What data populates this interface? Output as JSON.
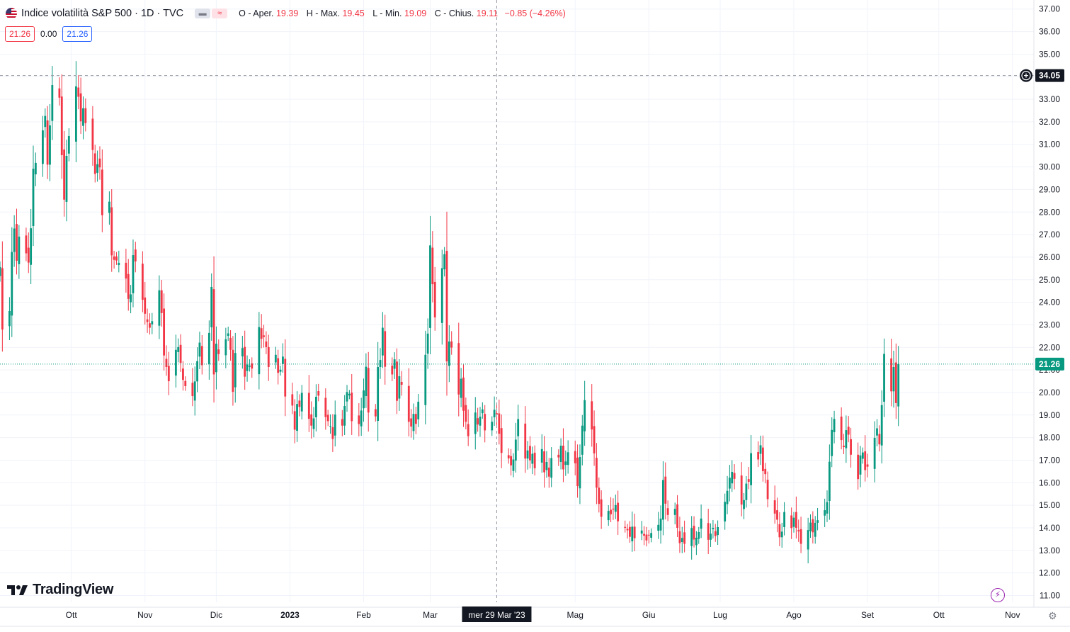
{
  "header": {
    "title": "Indice volatilità S&P 500 · 1D · TVC",
    "ohlc": [
      {
        "label": "O - Aper.",
        "value": "19.39"
      },
      {
        "label": "H - Max.",
        "value": "19.45"
      },
      {
        "label": "L - Min.",
        "value": "19.09"
      },
      {
        "label": "C - Chius.",
        "value": "19.11"
      }
    ],
    "change": "−0.85 (−4.26%)",
    "last_box": "21.26",
    "zero": "0.00",
    "last_box_2": "21.26",
    "pill_1": "▬",
    "pill_2": "≈"
  },
  "logo_text": "TradingView",
  "colors": {
    "up": "#089981",
    "down": "#f23645",
    "grid": "#f0f3fa",
    "axis_text": "#131722",
    "last_price": "#089981"
  },
  "icons": {
    "flag": "us-flag-icon",
    "logo": "tradingview-logo-icon",
    "bolt": "lightning-icon",
    "gear": "settings-gear-icon",
    "plus": "plus-circle-icon"
  },
  "chart_data": {
    "type": "candlestick",
    "symbol": "Indice volatilità S&P 500",
    "interval": "1D",
    "ylim": [
      10.7,
      37.4
    ],
    "yticks": [
      11,
      12,
      13,
      14,
      15,
      16,
      17,
      18,
      19,
      20,
      21,
      22,
      23,
      24,
      25,
      26,
      27,
      28,
      29,
      30,
      31,
      32,
      33,
      34,
      35,
      36,
      37
    ],
    "x_start": "2022-09-01",
    "x_end": "2023-11-10",
    "month_labels": [
      {
        "label": "Ott",
        "date": "2022-10-01"
      },
      {
        "label": "Nov",
        "date": "2022-11-01"
      },
      {
        "label": "Dic",
        "date": "2022-12-01"
      },
      {
        "label": "2023",
        "date": "2023-01-01",
        "bold": true
      },
      {
        "label": "Feb",
        "date": "2023-02-01"
      },
      {
        "label": "Mar",
        "date": "2023-03-01"
      },
      {
        "label": "Mag",
        "date": "2023-05-01"
      },
      {
        "label": "Giu",
        "date": "2023-06-01"
      },
      {
        "label": "Lug",
        "date": "2023-07-01"
      },
      {
        "label": "Ago",
        "date": "2023-08-01"
      },
      {
        "label": "Set",
        "date": "2023-09-01"
      },
      {
        "label": "Ott",
        "date": "2023-10-01"
      },
      {
        "label": "Nov",
        "date": "2023-11-01"
      }
    ],
    "crosshair": {
      "date_label": "mer 29 Mar '23",
      "date": "2023-03-29",
      "price": 34.05,
      "price_label": "34.05"
    },
    "last_price": {
      "value": 21.26,
      "label": "21.26"
    },
    "closes": [
      25.56,
      22.79,
      23.61,
      26.23,
      27.27,
      25.84,
      26.91,
      26.17,
      25.76,
      27.28,
      29.92,
      30.18,
      31.62,
      32.26,
      30.1,
      31.84,
      33.63,
      33.07,
      30.52,
      28.55,
      30.49,
      31.37,
      33.57,
      33.11,
      32.02,
      32.6,
      31.94,
      30.75,
      29.69,
      30.12,
      29.98,
      27.86,
      28.46,
      26.08,
      25.88,
      25.85,
      25.75,
      25.05,
      24.15,
      24.35,
      26.09,
      25.81,
      24.11,
      23.49,
      23.12,
      22.87,
      23.16,
      24.53,
      23.52,
      21.64,
      21.13,
      20.5,
      21.89,
      22.01,
      21.31,
      20.56,
      20.28,
      19.84,
      20.49,
      21.39,
      22.21,
      21.21,
      22.64,
      24.68,
      20.8,
      22.16,
      21.7,
      22.36,
      22.62,
      21.89,
      20.03,
      21.75,
      21.97,
      20.7,
      21.24,
      21.19,
      21.06,
      22.9,
      22.38,
      22.46,
      22.01,
      21.13,
      21.67,
      20.87,
      21.01,
      21.59,
      19.82,
      19.42,
      18.35,
      19.49,
      19.36,
      19.98,
      18.83,
      18.53,
      18.85,
      19.81,
      19.86,
      18.91,
      18.73,
      18.51,
      17.94,
      19.02,
      18.53,
      19.4,
      20.02,
      19.94,
      18.73,
      18.6,
      19.2,
      20.09,
      21.14,
      19.11,
      18.94,
      21.13,
      21.44,
      22.87,
      21.14,
      20.8,
      21.47,
      19.63,
      20.72,
      20.34,
      18.7,
      18.49,
      19.05,
      18.61,
      19.59,
      21.67,
      22.61,
      26.52,
      24.8,
      23.33,
      25.51,
      26.13,
      21.38,
      22.26,
      21.99,
      19.91,
      20.61,
      19.19,
      18.7,
      18.06,
      19.11,
      18.58,
      18.93,
      19.25,
      18.32,
      18.7,
      19.23,
      19.02,
      18.17,
      17.32,
      17.08,
      16.77,
      17.03,
      17.91,
      18.82,
      17.07,
      17.43,
      16.99,
      17.28,
      16.64,
      17.49,
      16.46,
      16.92,
      16.27,
      17.09,
      17.12,
      17.64,
      16.59,
      16.94,
      17.35,
      16.86,
      15.85,
      17.14,
      18.53,
      19.66,
      18.36,
      17.3,
      15.78,
      15.06,
      14.49,
      14.75,
      14.6,
      14.81,
      15.01,
      14.29,
      14.0,
      13.89,
      13.6,
      14.05,
      13.54,
      13.88,
      13.65,
      13.44,
      13.66,
      13.77,
      14.13,
      14.41,
      16.12,
      15.07,
      14.57,
      14.84,
      14.0,
      13.32,
      13.55,
      13.29,
      13.99,
      13.48,
      13.56,
      13.81,
      14.41,
      13.47,
      13.74,
      14.0,
      13.63,
      14.03,
      15.15,
      15.64,
      16.22,
      16.48,
      16.17,
      15.03,
      15.23,
      15.96,
      16.04,
      17.31,
      17.03,
      17.66,
      16.51,
      16.38,
      15.27,
      14.63,
      14.36,
      13.58,
      13.83,
      14.7,
      13.99,
      14.45,
      14.0,
      13.84,
      13.29,
      13.9,
      14.23,
      13.8,
      14.22,
      14.34,
      14.78,
      15.14,
      16.93,
      18.34,
      18.83,
      17.89,
      17.58,
      18.33,
      18.13,
      17.24,
      16.16,
      17.21,
      17.34,
      16.56,
      16.71,
      17.99,
      18.41,
      17.7,
      19.44,
      21.71,
      20.05,
      21.13,
      19.53,
      21.26
    ]
  }
}
